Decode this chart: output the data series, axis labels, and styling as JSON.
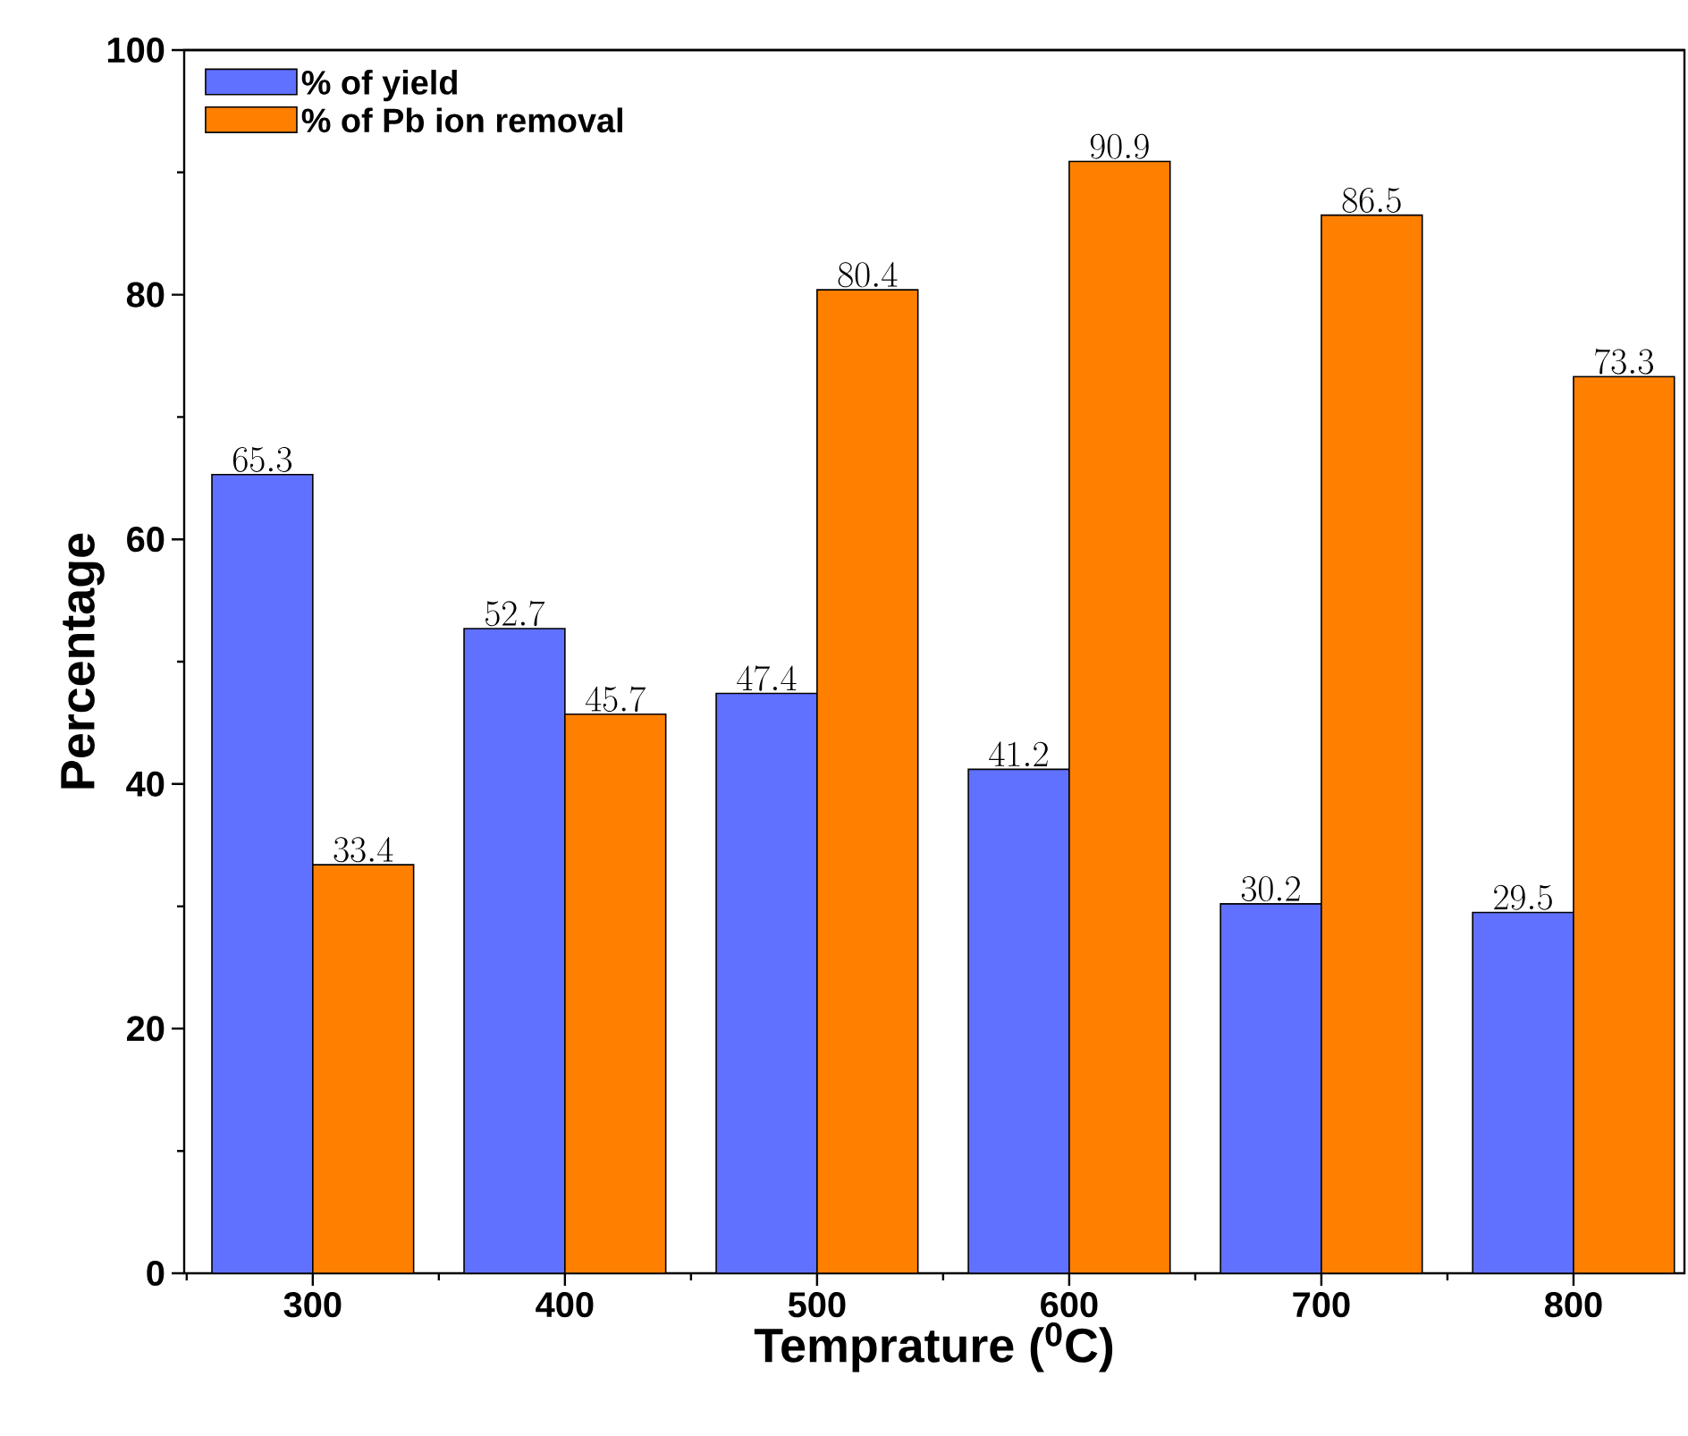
{
  "chart_data": {
    "type": "bar",
    "xlabel": "Temprature ($^{0}$C)",
    "ylabel": "Percentage",
    "categories": [
      "300",
      "400",
      "500",
      "600",
      "700",
      "800"
    ],
    "series": [
      {
        "name": "% of yield",
        "color": "#6070ff",
        "values": [
          65.3,
          52.7,
          47.4,
          41.2,
          30.2,
          29.5
        ]
      },
      {
        "name": "% of Pb ion removal",
        "color": "#ff8000",
        "values": [
          33.4,
          45.7,
          80.4,
          90.9,
          86.5,
          73.3
        ]
      }
    ],
    "ylim": [
      0,
      100
    ],
    "yticks": [
      0,
      20,
      40,
      60,
      80,
      100
    ],
    "data_labels": true,
    "legend": "top left",
    "grid": false
  }
}
